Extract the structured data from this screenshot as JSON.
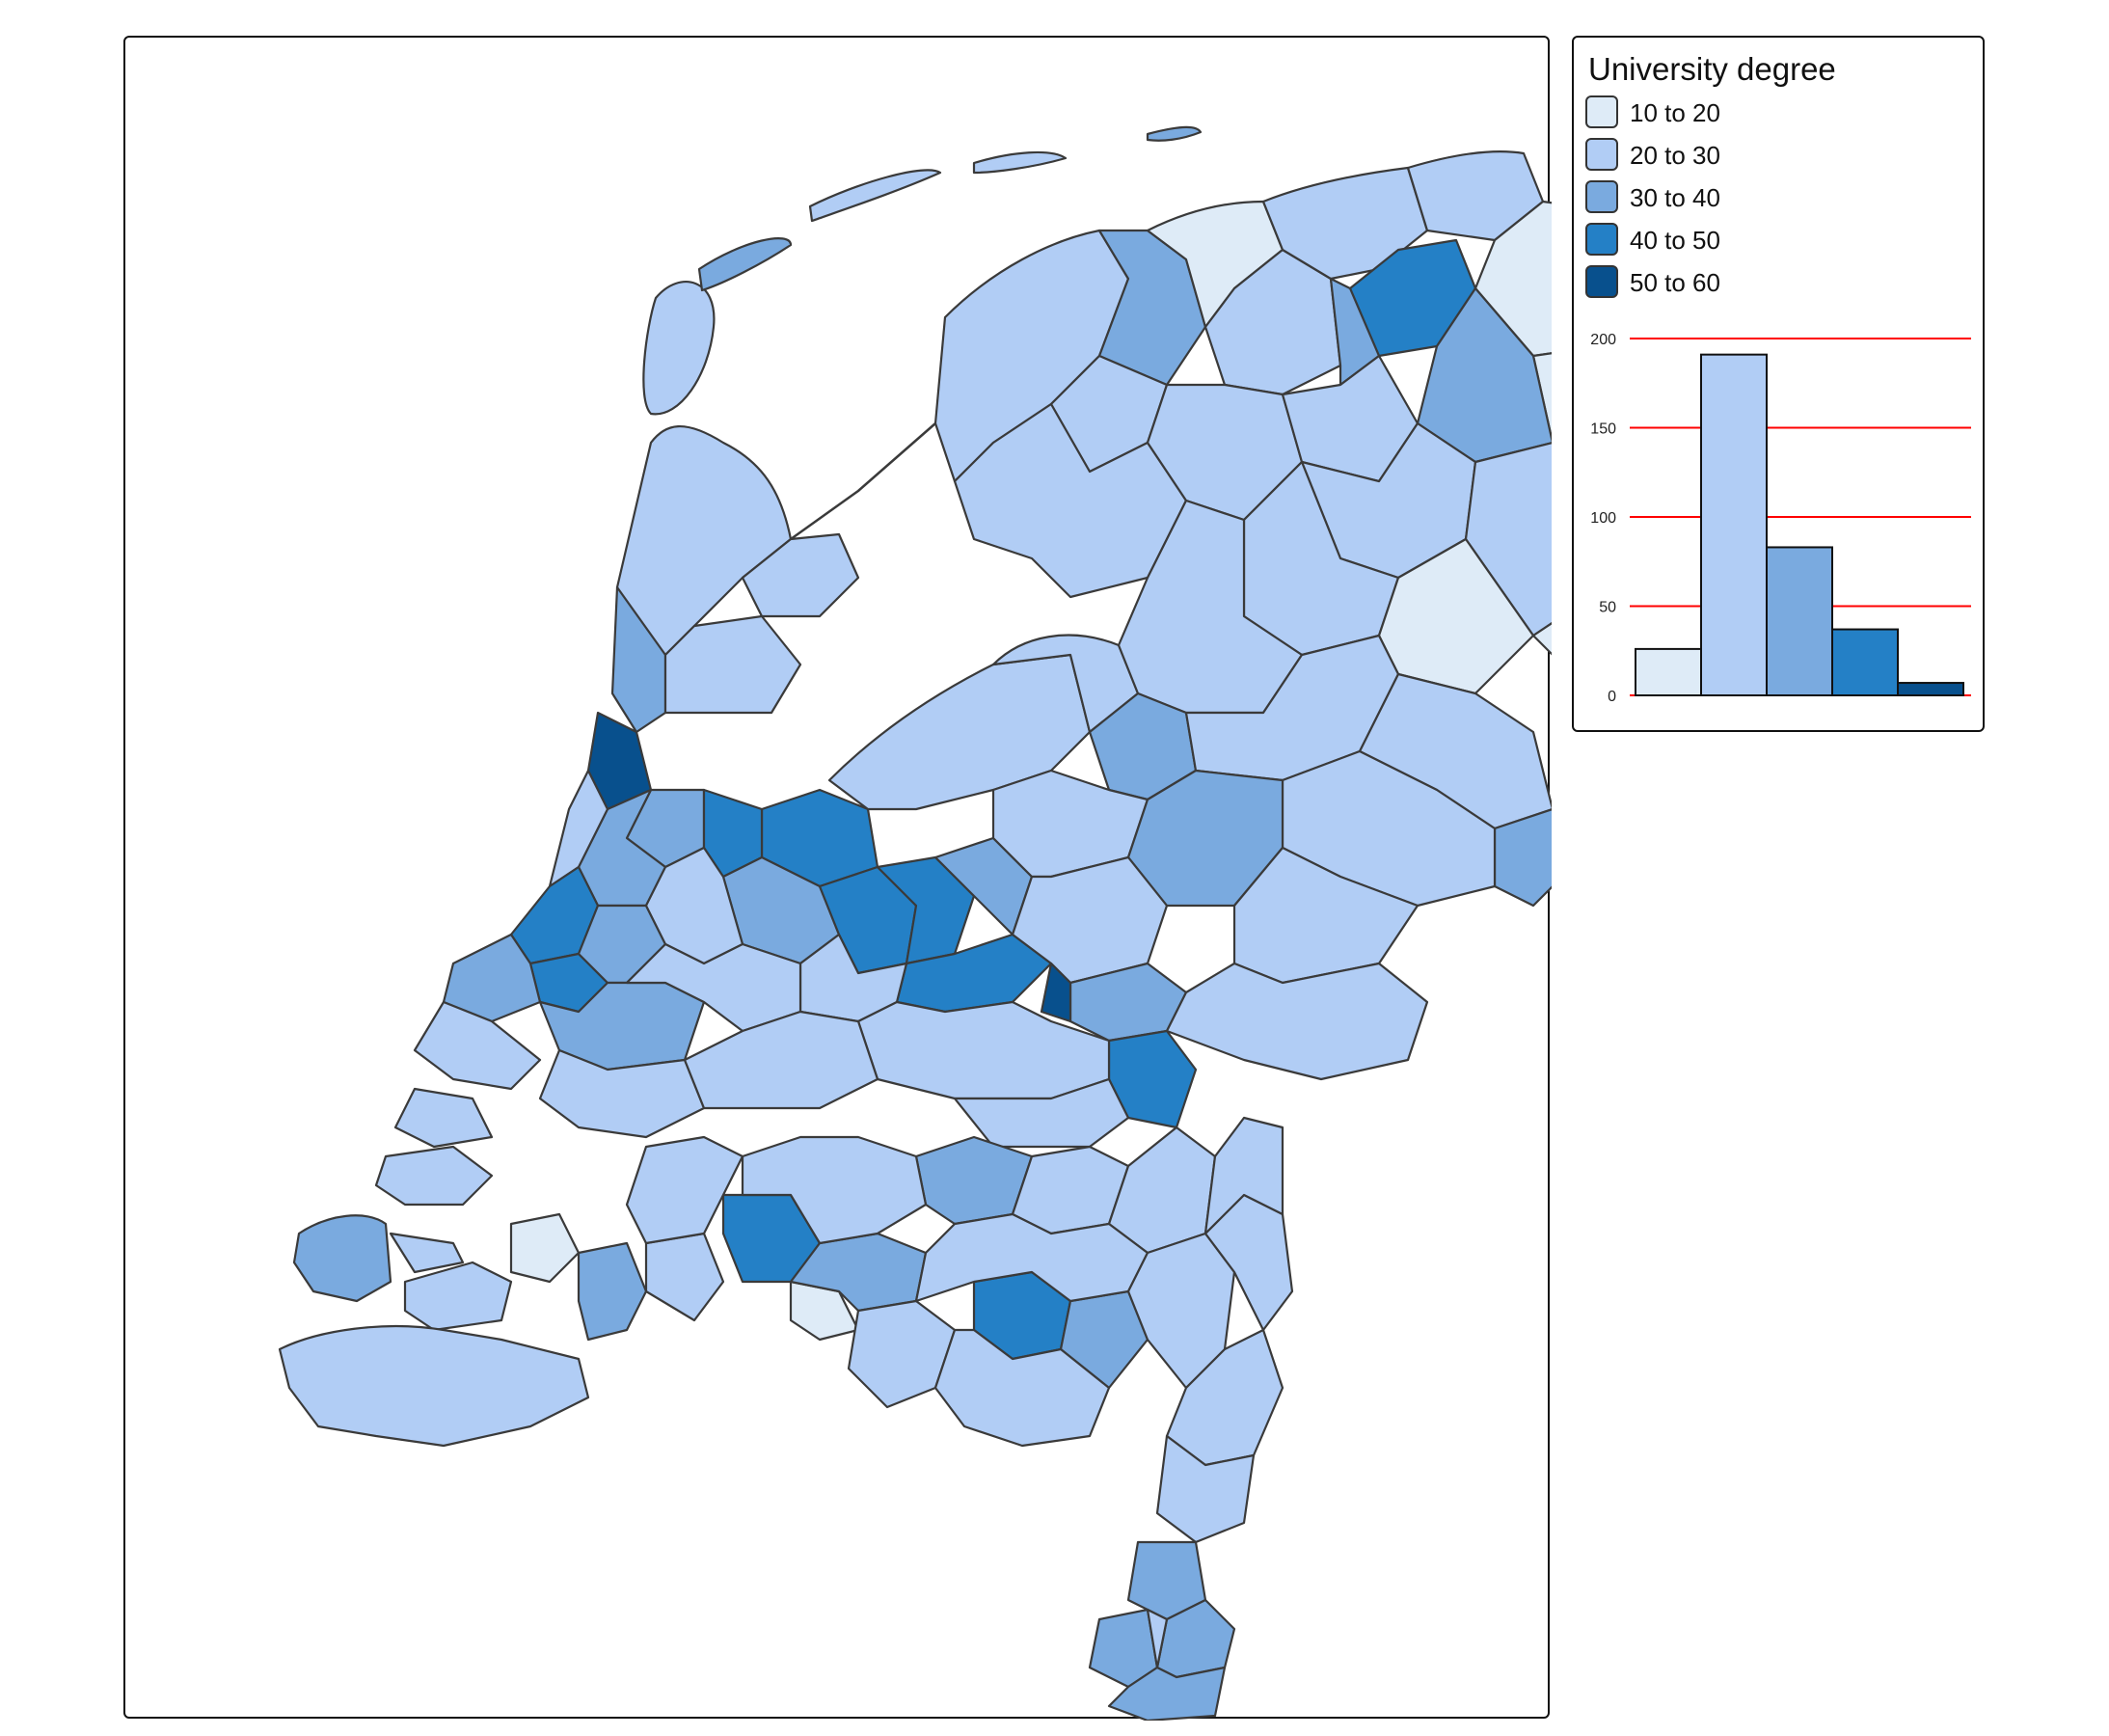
{
  "legend": {
    "title": "University degree",
    "classes": [
      {
        "label": "10 to 20",
        "color": "#deebf7",
        "count": 26
      },
      {
        "label": "20 to 30",
        "color": "#b1cdf5",
        "count": 191
      },
      {
        "label": "30 to 40",
        "color": "#7aaadf",
        "count": 83
      },
      {
        "label": "40 to 50",
        "color": "#2480c6",
        "count": 37
      },
      {
        "label": "50 to 60",
        "color": "#08508d",
        "count": 7
      }
    ]
  },
  "chart_data": {
    "type": "bar",
    "categories": [
      "10 to 20",
      "20 to 30",
      "30 to 40",
      "40 to 50",
      "50 to 60"
    ],
    "values": [
      26,
      191,
      83,
      37,
      7
    ],
    "y_ticks": [
      "0",
      "50",
      "100",
      "150",
      "200"
    ],
    "ylim": [
      0,
      200
    ],
    "grid": true,
    "grid_color": "#ff0000"
  },
  "colors": {
    "border": "#3a3a3a",
    "frame": "#111111"
  }
}
